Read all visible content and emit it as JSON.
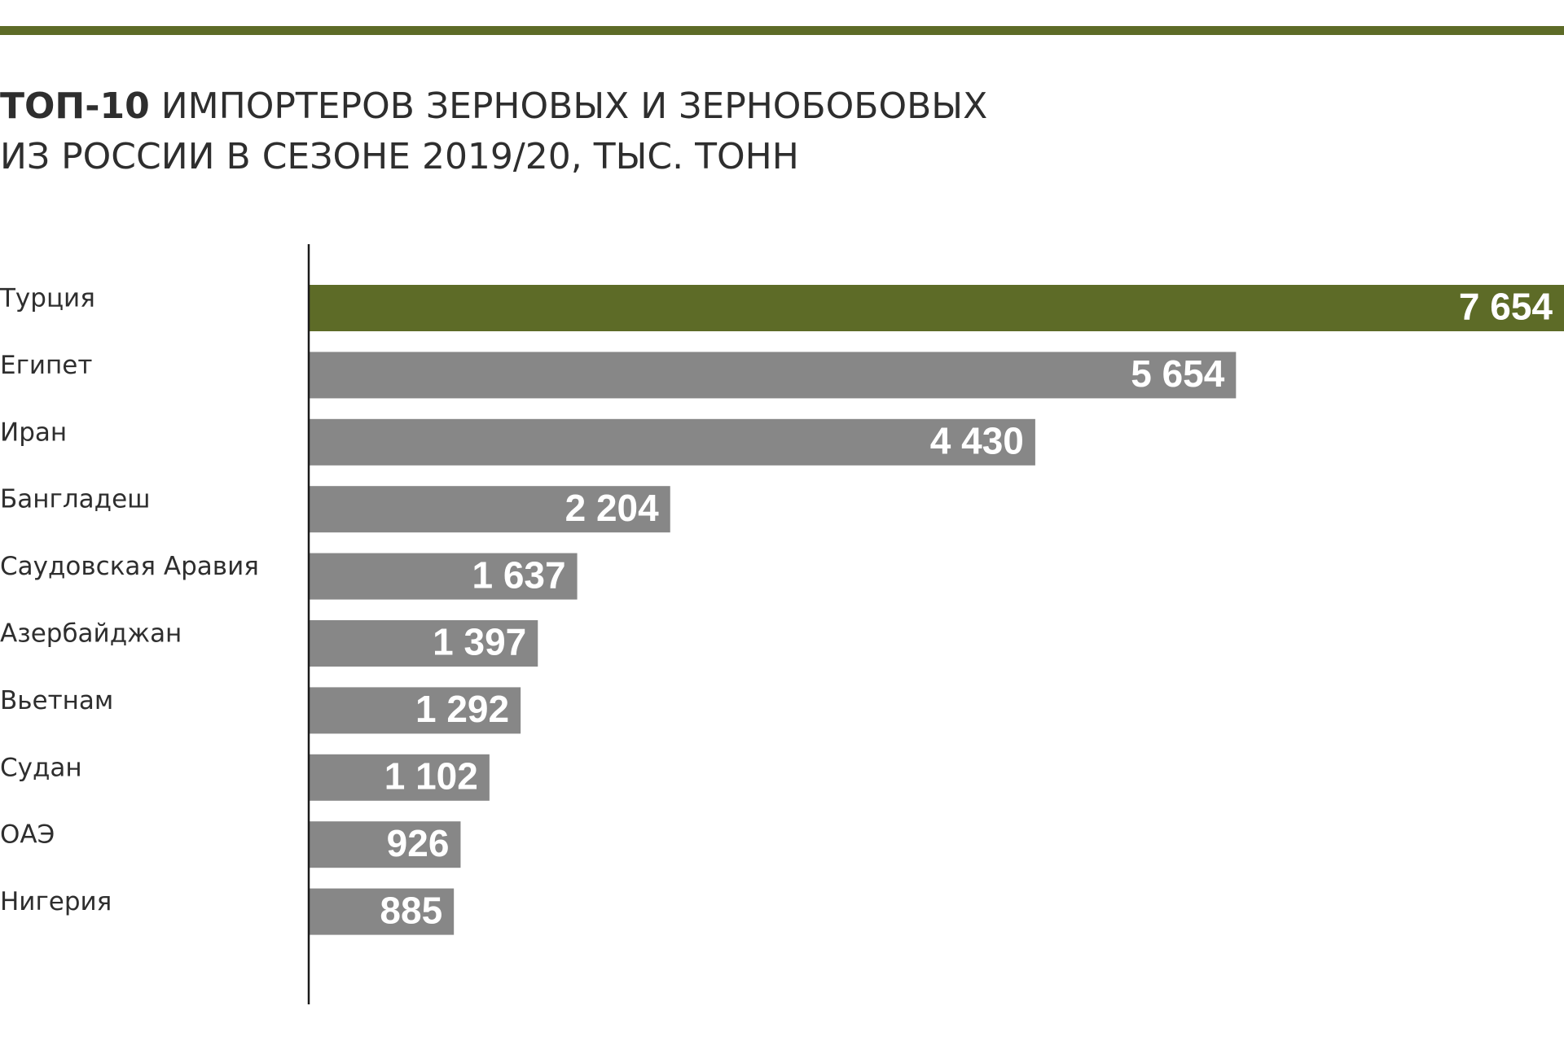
{
  "colors": {
    "accent": "#5d6b27",
    "bar": "#878787",
    "axis": "#1a1a1a",
    "text": "#2e2e2e"
  },
  "title": {
    "bold": "ТОП-10",
    "rest_line1": "ИМПОРТЕРОВ ЗЕРНОВЫХ И ЗЕРНОБОБОВЫХ",
    "line2": "ИЗ РОССИИ В СЕЗОНЕ 2019/20, ТЫС. ТОНН"
  },
  "chart_data": {
    "type": "bar",
    "orientation": "horizontal",
    "categories": [
      "Турция",
      "Египет",
      "Иран",
      "Бангладеш",
      "Саудовская Аравия",
      "Азербайджан",
      "Вьетнам",
      "Судан",
      "ОАЭ",
      "Нигерия"
    ],
    "values": [
      7654,
      5654,
      4430,
      2204,
      1637,
      1397,
      1292,
      1102,
      926,
      885
    ],
    "value_labels": [
      "7 654",
      "5 654",
      "4 430",
      "2 204",
      "1 637",
      "1 397",
      "1 292",
      "1 102",
      "926",
      "885"
    ],
    "highlight_index": 0,
    "xlim": [
      0,
      7654
    ],
    "grid": false,
    "legend": "none"
  }
}
